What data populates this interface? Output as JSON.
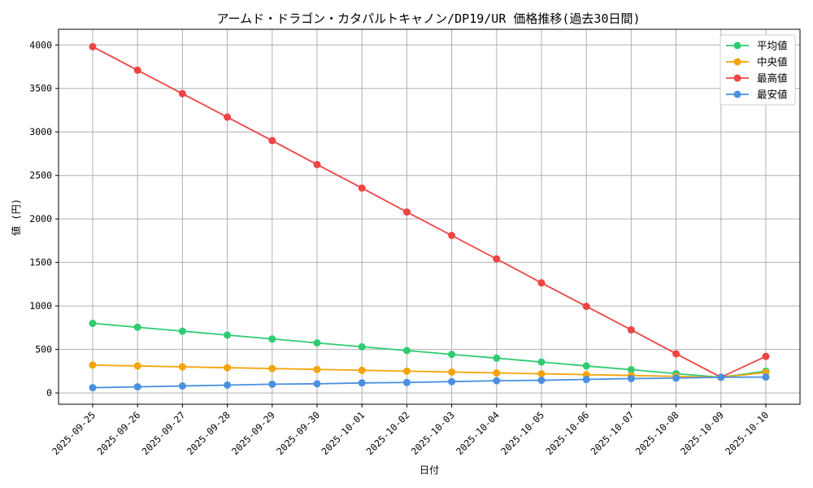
{
  "chart_data": {
    "type": "line",
    "title": "アームド・ドラゴン・カタパルトキャノン/DP19/UR 価格推移(過去30日間)",
    "xlabel": "日付",
    "ylabel": "値 (円)",
    "ylim": [
      -130,
      4180
    ],
    "yticks": [
      0,
      500,
      1000,
      1500,
      2000,
      2500,
      3000,
      3500,
      4000
    ],
    "grid": true,
    "legend_position": "top-right",
    "categories": [
      "2025-09-25",
      "2025-09-26",
      "2025-09-27",
      "2025-09-28",
      "2025-09-29",
      "2025-09-30",
      "2025-10-01",
      "2025-10-02",
      "2025-10-03",
      "2025-10-04",
      "2025-10-05",
      "2025-10-06",
      "2025-10-07",
      "2025-10-08",
      "2025-10-09",
      "2025-10-10"
    ],
    "series": [
      {
        "name": "平均値",
        "color": "#2ecc71",
        "values": [
          800,
          755,
          710,
          665,
          620,
          575,
          530,
          487,
          443,
          400,
          355,
          310,
          267,
          222,
          180,
          250
        ]
      },
      {
        "name": "中央値",
        "color": "#f5a30a",
        "values": [
          320,
          310,
          300,
          290,
          280,
          270,
          260,
          250,
          240,
          230,
          220,
          210,
          200,
          190,
          180,
          235
        ]
      },
      {
        "name": "最高値",
        "color": "#ef4444",
        "values": [
          3980,
          3710,
          3440,
          3170,
          2900,
          2625,
          2355,
          2080,
          1810,
          1540,
          1265,
          995,
          725,
          450,
          180,
          420
        ]
      },
      {
        "name": "最安値",
        "color": "#4a90e2",
        "values": [
          60,
          70,
          80,
          90,
          100,
          105,
          115,
          120,
          130,
          140,
          145,
          155,
          165,
          170,
          180,
          182
        ]
      }
    ]
  }
}
